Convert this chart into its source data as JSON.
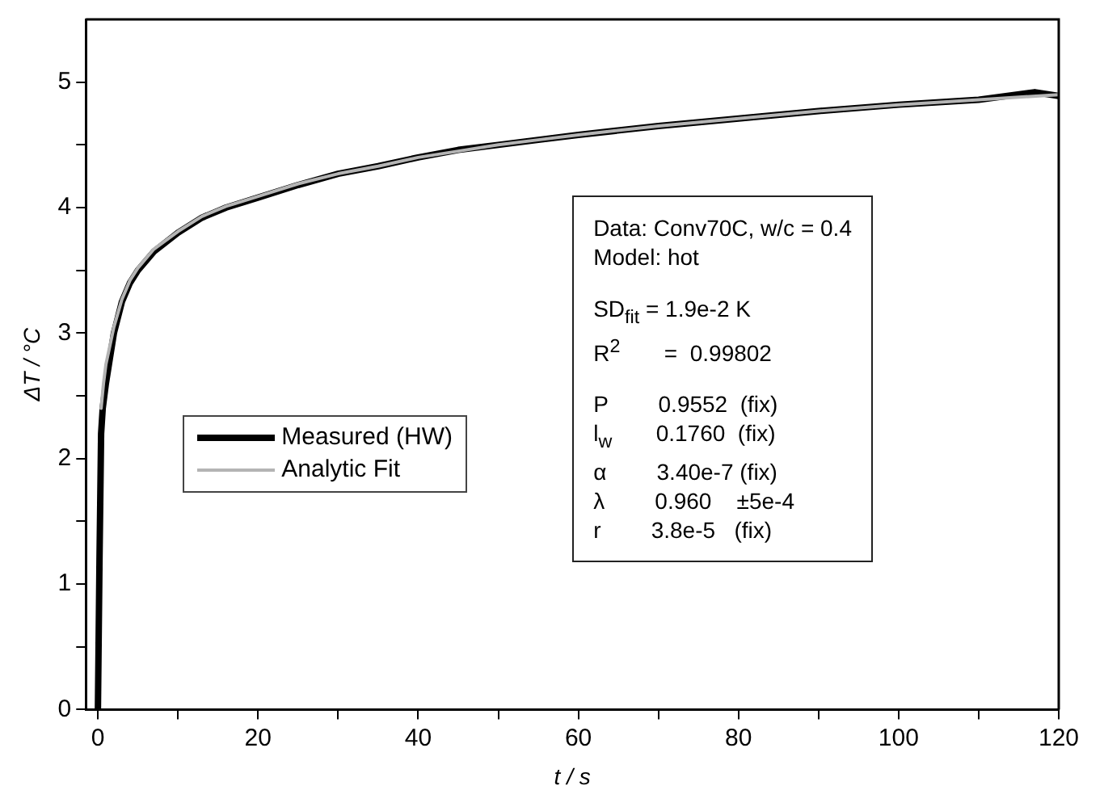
{
  "chart_data": {
    "type": "line",
    "xlabel": "t / s",
    "ylabel": "ΔT / °C",
    "xlim": [
      -1.5,
      120
    ],
    "ylim": [
      0,
      5.5
    ],
    "xticks": [
      0,
      {
        "value": 10,
        "label": null
      },
      20,
      {
        "value": 30,
        "label": null
      },
      40,
      {
        "value": 50,
        "label": null
      },
      60,
      {
        "value": 70,
        "label": null
      },
      80,
      {
        "value": 90,
        "label": null
      },
      100,
      {
        "value": 110,
        "label": null
      },
      120
    ],
    "yticks": [
      0,
      {
        "value": 0.5,
        "label": null
      },
      1,
      {
        "value": 1.5,
        "label": null
      },
      2,
      {
        "value": 2.5,
        "label": null
      },
      3,
      {
        "value": 3.5,
        "label": null
      },
      4,
      {
        "value": 4.5,
        "label": null
      },
      5
    ],
    "legend": "left",
    "marker": "none",
    "line_style": "solid",
    "series": [
      {
        "name": "Measured (HW)",
        "color": "#000000",
        "x": [
          0,
          0.2,
          0.4,
          0.6,
          1,
          1.5,
          2,
          3,
          4,
          5,
          7,
          10,
          13,
          16,
          20,
          25,
          30,
          35,
          40,
          45,
          50,
          55,
          60,
          70,
          80,
          90,
          100,
          110,
          117,
          120
        ],
        "values": [
          0,
          1.2,
          2.2,
          2.4,
          2.6,
          2.8,
          3.0,
          3.25,
          3.4,
          3.5,
          3.65,
          3.8,
          3.92,
          4.0,
          4.08,
          4.18,
          4.27,
          4.33,
          4.4,
          4.46,
          4.5,
          4.54,
          4.58,
          4.65,
          4.71,
          4.77,
          4.82,
          4.86,
          4.92,
          4.89
        ]
      },
      {
        "name": "Analytic Fit",
        "color": "#b4b4b4",
        "x": [
          0.4,
          0.7,
          1,
          1.5,
          2,
          3,
          4,
          5,
          7,
          10,
          13,
          16,
          20,
          25,
          30,
          35,
          40,
          45,
          50,
          55,
          60,
          70,
          80,
          90,
          100,
          110,
          120
        ],
        "values": [
          2.4,
          2.6,
          2.75,
          2.9,
          3.05,
          3.27,
          3.42,
          3.52,
          3.67,
          3.81,
          3.93,
          4.01,
          4.09,
          4.19,
          4.27,
          4.33,
          4.4,
          4.45,
          4.5,
          4.54,
          4.58,
          4.65,
          4.71,
          4.77,
          4.82,
          4.86,
          4.9
        ]
      }
    ],
    "annotations": [
      "Data: Conv70C, w/c = 0.4",
      "Model: hot",
      "SD$_{fit}$ = 1.9e-2 K",
      "R$^{2}$       =  0.99802",
      "P        0.9552  (fix)",
      "l$_{w}$       0.1760  (fix)",
      "α        3.40e-7 (fix)",
      "λ        0.960    ±5e-4",
      "r        3.8e-5   (fix)"
    ]
  }
}
